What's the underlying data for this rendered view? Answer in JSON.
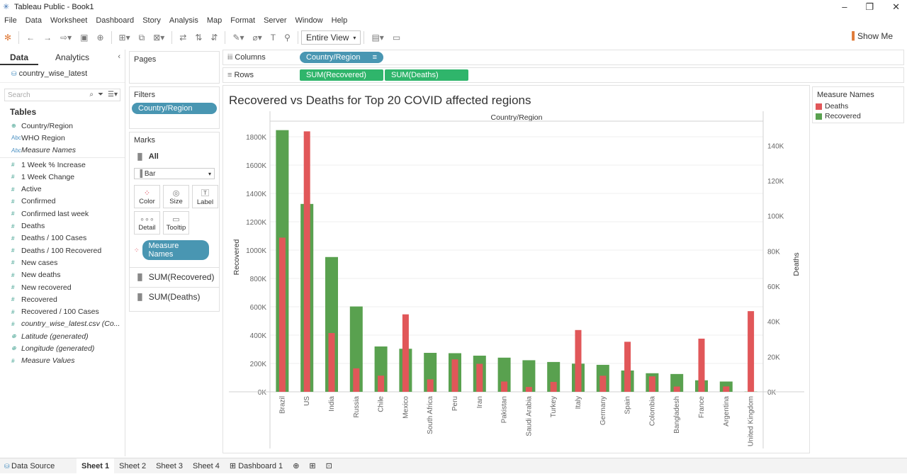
{
  "window": {
    "title": "Tableau Public - Book1"
  },
  "menu": [
    "File",
    "Data",
    "Worksheet",
    "Dashboard",
    "Story",
    "Analysis",
    "Map",
    "Format",
    "Server",
    "Window",
    "Help"
  ],
  "toolbar": {
    "fit": "Entire View",
    "show_me": "Show Me"
  },
  "left": {
    "tab_data": "Data",
    "tab_analytics": "Analytics",
    "datasource": "country_wise_latest",
    "search_placeholder": "Search",
    "tables_heading": "Tables",
    "dimensions": [
      {
        "icon": "globe",
        "name": "Country/Region"
      },
      {
        "icon": "abc",
        "name": "WHO Region"
      },
      {
        "icon": "abc",
        "name": "Measure Names",
        "italic": true
      }
    ],
    "measures": [
      {
        "name": "1 Week % Increase"
      },
      {
        "name": "1 Week Change"
      },
      {
        "name": "Active"
      },
      {
        "name": "Confirmed"
      },
      {
        "name": "Confirmed last week"
      },
      {
        "name": "Deaths"
      },
      {
        "name": "Deaths / 100 Cases"
      },
      {
        "name": "Deaths / 100 Recovered"
      },
      {
        "name": "New cases"
      },
      {
        "name": "New deaths"
      },
      {
        "name": "New recovered"
      },
      {
        "name": "Recovered"
      },
      {
        "name": "Recovered / 100 Cases"
      },
      {
        "name": "country_wise_latest.csv (Co...",
        "italic": true
      },
      {
        "name": "Latitude (generated)",
        "italic": true,
        "icon": "globe"
      },
      {
        "name": "Longitude (generated)",
        "italic": true,
        "icon": "globe"
      },
      {
        "name": "Measure Values",
        "italic": true
      }
    ]
  },
  "cards": {
    "pages": "Pages",
    "filters": "Filters",
    "filter_pill": "Country/Region",
    "marks": "Marks",
    "marks_all": "All",
    "mark_type": "Bar",
    "buttons": [
      "Color",
      "Size",
      "Label",
      "Detail",
      "Tooltip"
    ],
    "color_pill": "Measure Names",
    "sum_recovered": "SUM(Recovered)",
    "sum_deaths": "SUM(Deaths)"
  },
  "shelves": {
    "columns_label": "Columns",
    "columns_pill": "Country/Region",
    "rows_label": "Rows",
    "rows_pill_1": "SUM(Recovered)",
    "rows_pill_2": "SUM(Deaths)"
  },
  "legend": {
    "title": "Measure Names",
    "items": [
      {
        "name": "Deaths",
        "color": "#e15759"
      },
      {
        "name": "Recovered",
        "color": "#59a14f"
      }
    ]
  },
  "bottom": {
    "datasource_tab": "Data Source",
    "tabs": [
      "Sheet 1",
      "Sheet 2",
      "Sheet 3",
      "Sheet 4",
      "Dashboard 1"
    ]
  },
  "chart_data": {
    "type": "bar",
    "title": "Recovered vs Deaths for Top 20 COVID affected regions",
    "column_header": "Country/Region",
    "categories": [
      "Brazil",
      "US",
      "India",
      "Russia",
      "Chile",
      "Mexico",
      "South Africa",
      "Peru",
      "Iran",
      "Pakistan",
      "Saudi Arabia",
      "Turkey",
      "Italy",
      "Germany",
      "Spain",
      "Colombia",
      "Bangladesh",
      "France",
      "Argentina",
      "United Kingdom"
    ],
    "series": [
      {
        "name": "Recovered",
        "axis": "left",
        "color": "#59a14f",
        "values": [
          1846641,
          1325804,
          951166,
          602249,
          319954,
          303810,
          274925,
          272547,
          255144,
          241026,
          222936,
          210469,
          198593,
          190314,
          150376,
          131161,
          125683,
          81212,
          72575,
          1437
        ]
      },
      {
        "name": "Deaths",
        "axis": "right",
        "color": "#e15759",
        "values": [
          87618,
          148011,
          33408,
          13334,
          9187,
          44022,
          7067,
          18418,
          15912,
          5842,
          2760,
          5630,
          35112,
          9125,
          28432,
          8777,
          3000,
          30212,
          3059,
          45844
        ]
      }
    ],
    "ylabel_left": "Recovered",
    "ylabel_right": "Deaths",
    "ylim_left": [
      0,
      1900000
    ],
    "ylim_right": [
      0,
      153000
    ],
    "yticks_left": [
      {
        "v": 0,
        "t": "0K"
      },
      {
        "v": 200000,
        "t": "200K"
      },
      {
        "v": 400000,
        "t": "400K"
      },
      {
        "v": 600000,
        "t": "600K"
      },
      {
        "v": 800000,
        "t": "800K"
      },
      {
        "v": 1000000,
        "t": "1000K"
      },
      {
        "v": 1200000,
        "t": "1200K"
      },
      {
        "v": 1400000,
        "t": "1400K"
      },
      {
        "v": 1600000,
        "t": "1600K"
      },
      {
        "v": 1800000,
        "t": "1800K"
      }
    ],
    "yticks_right": [
      {
        "v": 0,
        "t": "0K"
      },
      {
        "v": 20000,
        "t": "20K"
      },
      {
        "v": 40000,
        "t": "40K"
      },
      {
        "v": 60000,
        "t": "60K"
      },
      {
        "v": 80000,
        "t": "80K"
      },
      {
        "v": 100000,
        "t": "100K"
      },
      {
        "v": 120000,
        "t": "120K"
      },
      {
        "v": 140000,
        "t": "140K"
      }
    ],
    "grid": true
  }
}
